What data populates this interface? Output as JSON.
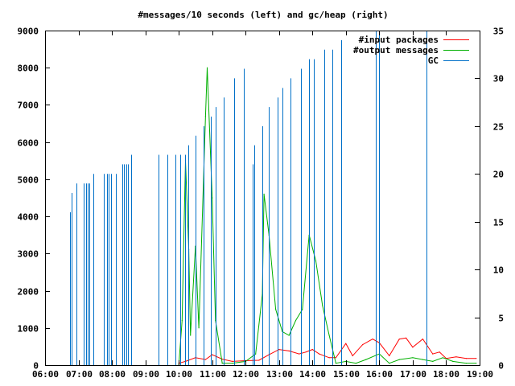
{
  "chart_data": {
    "type": "line",
    "title": "#messages/10 seconds (left) and gc/heap (right)",
    "xlabel": "",
    "ylabel": "",
    "y2label": "",
    "xlim": [
      6,
      19
    ],
    "ylim": [
      0,
      9000
    ],
    "y2lim": [
      0,
      35
    ],
    "x_ticks": [
      {
        "value": 6,
        "label": "06:00"
      },
      {
        "value": 7,
        "label": "07:00"
      },
      {
        "value": 8,
        "label": "08:00"
      },
      {
        "value": 9,
        "label": "09:00"
      },
      {
        "value": 10,
        "label": "10:00"
      },
      {
        "value": 11,
        "label": "11:00"
      },
      {
        "value": 12,
        "label": "12:00"
      },
      {
        "value": 13,
        "label": "13:00"
      },
      {
        "value": 14,
        "label": "14:00"
      },
      {
        "value": 15,
        "label": "15:00"
      },
      {
        "value": 16,
        "label": "16:00"
      },
      {
        "value": 17,
        "label": "17:00"
      },
      {
        "value": 18,
        "label": "18:00"
      },
      {
        "value": 19,
        "label": "19:00"
      }
    ],
    "y_ticks": [
      0,
      1000,
      2000,
      3000,
      4000,
      5000,
      6000,
      7000,
      8000,
      9000
    ],
    "y2_ticks": [
      0,
      5,
      10,
      15,
      20,
      25,
      30,
      35
    ],
    "legend_position": "top-right",
    "grid": false,
    "series": [
      {
        "name": "#input packages",
        "color": "#ff0000",
        "axis": "left",
        "kind": "line",
        "points": [
          [
            10.0,
            50
          ],
          [
            10.2,
            100
          ],
          [
            10.5,
            200
          ],
          [
            10.8,
            150
          ],
          [
            11.0,
            280
          ],
          [
            11.3,
            160
          ],
          [
            11.6,
            100
          ],
          [
            12.0,
            120
          ],
          [
            12.4,
            130
          ],
          [
            12.7,
            280
          ],
          [
            13.0,
            420
          ],
          [
            13.3,
            380
          ],
          [
            13.6,
            300
          ],
          [
            13.8,
            350
          ],
          [
            14.0,
            420
          ],
          [
            14.2,
            300
          ],
          [
            14.5,
            200
          ],
          [
            14.7,
            200
          ],
          [
            15.0,
            580
          ],
          [
            15.2,
            250
          ],
          [
            15.5,
            550
          ],
          [
            15.8,
            700
          ],
          [
            16.0,
            600
          ],
          [
            16.3,
            250
          ],
          [
            16.6,
            700
          ],
          [
            16.8,
            730
          ],
          [
            17.0,
            480
          ],
          [
            17.3,
            700
          ],
          [
            17.6,
            300
          ],
          [
            17.8,
            350
          ],
          [
            18.0,
            180
          ],
          [
            18.3,
            220
          ],
          [
            18.6,
            180
          ],
          [
            18.9,
            180
          ]
        ]
      },
      {
        "name": "#output messages",
        "color": "#00b000",
        "axis": "left",
        "kind": "line",
        "points": [
          [
            10.0,
            0
          ],
          [
            10.1,
            1200
          ],
          [
            10.2,
            5500
          ],
          [
            10.3,
            3100
          ],
          [
            10.35,
            800
          ],
          [
            10.5,
            3200
          ],
          [
            10.6,
            1000
          ],
          [
            10.8,
            6700
          ],
          [
            10.85,
            8000
          ],
          [
            11.0,
            4500
          ],
          [
            11.1,
            1200
          ],
          [
            11.3,
            50
          ],
          [
            11.6,
            50
          ],
          [
            12.0,
            100
          ],
          [
            12.3,
            300
          ],
          [
            12.5,
            1900
          ],
          [
            12.55,
            4600
          ],
          [
            12.7,
            3500
          ],
          [
            12.9,
            1500
          ],
          [
            13.1,
            900
          ],
          [
            13.3,
            800
          ],
          [
            13.5,
            1200
          ],
          [
            13.7,
            1500
          ],
          [
            13.9,
            3500
          ],
          [
            14.1,
            2800
          ],
          [
            14.3,
            1600
          ],
          [
            14.5,
            800
          ],
          [
            14.7,
            50
          ],
          [
            15.0,
            100
          ],
          [
            15.3,
            50
          ],
          [
            15.6,
            150
          ],
          [
            16.0,
            300
          ],
          [
            16.3,
            50
          ],
          [
            16.6,
            150
          ],
          [
            17.0,
            200
          ],
          [
            17.3,
            150
          ],
          [
            17.6,
            100
          ],
          [
            17.9,
            200
          ],
          [
            18.2,
            100
          ],
          [
            18.6,
            50
          ],
          [
            18.9,
            50
          ]
        ]
      },
      {
        "name": "GC",
        "color": "#0070c8",
        "axis": "right",
        "kind": "impulses",
        "points": [
          [
            6.75,
            16
          ],
          [
            6.8,
            18
          ],
          [
            6.95,
            19
          ],
          [
            7.15,
            19
          ],
          [
            7.22,
            19
          ],
          [
            7.28,
            19
          ],
          [
            7.33,
            19
          ],
          [
            7.45,
            20
          ],
          [
            7.75,
            20
          ],
          [
            7.85,
            20
          ],
          [
            7.9,
            20
          ],
          [
            7.97,
            20
          ],
          [
            8.12,
            20
          ],
          [
            8.3,
            21
          ],
          [
            8.37,
            21
          ],
          [
            8.43,
            21
          ],
          [
            8.48,
            21
          ],
          [
            8.58,
            22
          ],
          [
            9.4,
            22
          ],
          [
            9.65,
            22
          ],
          [
            9.9,
            22
          ],
          [
            10.05,
            22
          ],
          [
            10.2,
            22
          ],
          [
            10.28,
            23
          ],
          [
            10.5,
            24
          ],
          [
            10.75,
            25
          ],
          [
            10.95,
            26
          ],
          [
            11.1,
            27
          ],
          [
            11.35,
            28
          ],
          [
            11.65,
            30
          ],
          [
            11.95,
            31
          ],
          [
            12.2,
            21
          ],
          [
            12.25,
            23
          ],
          [
            12.5,
            25
          ],
          [
            12.7,
            27
          ],
          [
            12.95,
            28
          ],
          [
            13.1,
            29
          ],
          [
            13.35,
            30
          ],
          [
            13.65,
            31
          ],
          [
            13.9,
            32
          ],
          [
            14.05,
            32
          ],
          [
            14.35,
            33
          ],
          [
            14.6,
            33
          ],
          [
            14.85,
            34
          ],
          [
            15.9,
            35
          ],
          [
            16.0,
            35
          ],
          [
            17.4,
            35
          ]
        ]
      }
    ]
  }
}
